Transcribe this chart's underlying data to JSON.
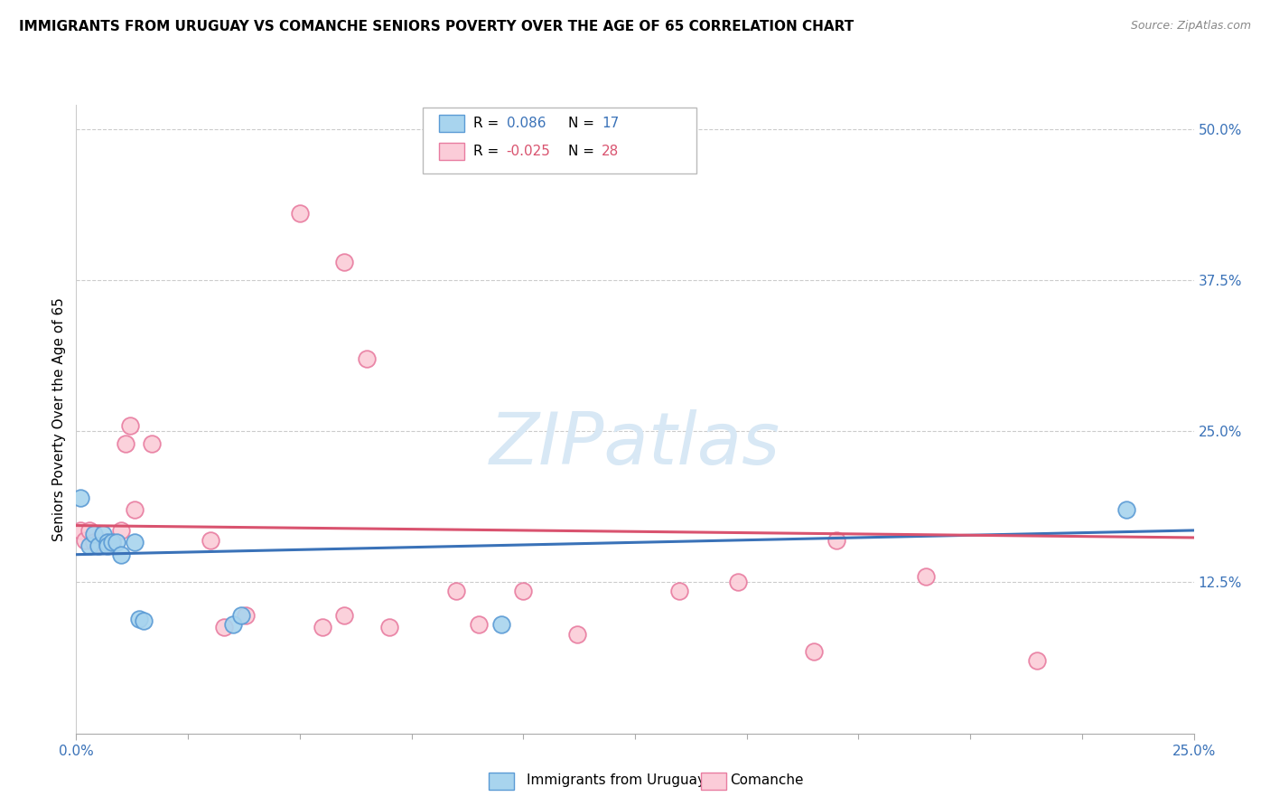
{
  "title": "IMMIGRANTS FROM URUGUAY VS COMANCHE SENIORS POVERTY OVER THE AGE OF 65 CORRELATION CHART",
  "source": "Source: ZipAtlas.com",
  "ylabel": "Seniors Poverty Over the Age of 65",
  "xlim": [
    0.0,
    0.25
  ],
  "ylim": [
    0.0,
    0.52
  ],
  "blue_color": "#A8D4EE",
  "pink_color": "#FBCCD8",
  "blue_edge_color": "#5B9BD5",
  "pink_edge_color": "#E87CA0",
  "blue_line_color": "#3A72B8",
  "pink_line_color": "#D9536F",
  "watermark_color": "#D8E8F5",
  "blue_scatter": [
    [
      0.001,
      0.195
    ],
    [
      0.003,
      0.155
    ],
    [
      0.004,
      0.165
    ],
    [
      0.005,
      0.155
    ],
    [
      0.006,
      0.165
    ],
    [
      0.007,
      0.158
    ],
    [
      0.007,
      0.155
    ],
    [
      0.008,
      0.158
    ],
    [
      0.009,
      0.158
    ],
    [
      0.01,
      0.148
    ],
    [
      0.013,
      0.158
    ],
    [
      0.014,
      0.095
    ],
    [
      0.015,
      0.093
    ],
    [
      0.035,
      0.09
    ],
    [
      0.037,
      0.098
    ],
    [
      0.095,
      0.09
    ],
    [
      0.235,
      0.185
    ]
  ],
  "pink_scatter": [
    [
      0.001,
      0.168
    ],
    [
      0.002,
      0.16
    ],
    [
      0.003,
      0.168
    ],
    [
      0.004,
      0.158
    ],
    [
      0.005,
      0.158
    ],
    [
      0.006,
      0.158
    ],
    [
      0.007,
      0.158
    ],
    [
      0.008,
      0.158
    ],
    [
      0.01,
      0.168
    ],
    [
      0.011,
      0.24
    ],
    [
      0.012,
      0.255
    ],
    [
      0.013,
      0.185
    ],
    [
      0.017,
      0.24
    ],
    [
      0.03,
      0.16
    ],
    [
      0.033,
      0.088
    ],
    [
      0.038,
      0.098
    ],
    [
      0.05,
      0.43
    ],
    [
      0.06,
      0.39
    ],
    [
      0.065,
      0.31
    ],
    [
      0.055,
      0.088
    ],
    [
      0.06,
      0.098
    ],
    [
      0.07,
      0.088
    ],
    [
      0.085,
      0.118
    ],
    [
      0.09,
      0.09
    ],
    [
      0.1,
      0.118
    ],
    [
      0.112,
      0.082
    ],
    [
      0.135,
      0.118
    ],
    [
      0.148,
      0.125
    ],
    [
      0.165,
      0.068
    ],
    [
      0.17,
      0.16
    ],
    [
      0.19,
      0.13
    ],
    [
      0.215,
      0.06
    ]
  ],
  "blue_trend_x": [
    0.0,
    0.25
  ],
  "blue_trend_y": [
    0.148,
    0.168
  ],
  "pink_trend_x": [
    0.0,
    0.25
  ],
  "pink_trend_y": [
    0.172,
    0.162
  ]
}
